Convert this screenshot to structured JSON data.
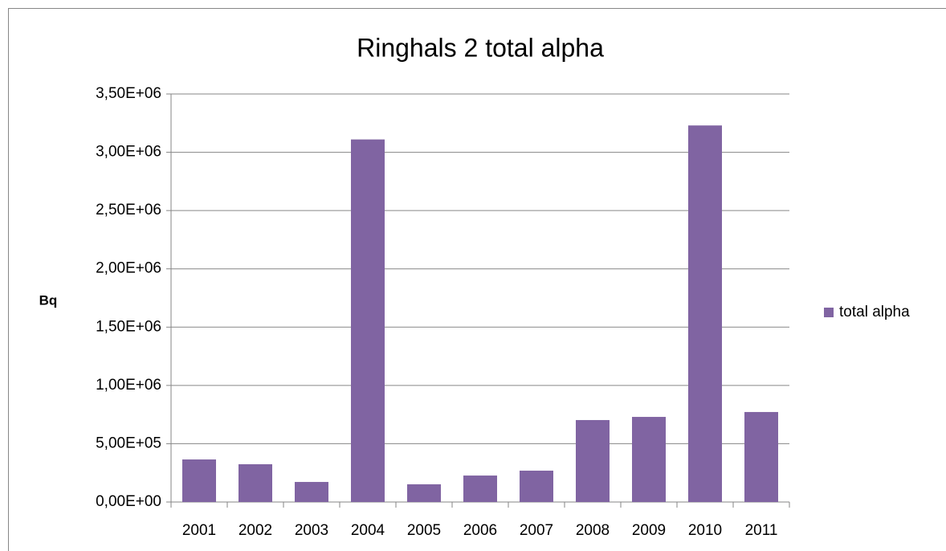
{
  "chart_data": {
    "type": "bar",
    "title": "Ringhals 2 total alpha",
    "y_label": "Bq",
    "categories": [
      "2001",
      "2002",
      "2003",
      "2004",
      "2005",
      "2006",
      "2007",
      "2008",
      "2009",
      "2010",
      "2011"
    ],
    "series": [
      {
        "name": "total alpha",
        "color": "#8064a2",
        "values": [
          365000,
          324000,
          172000,
          3110000,
          152000,
          227000,
          269000,
          703000,
          730000,
          3230000,
          772000
        ]
      }
    ],
    "ylim": [
      0,
      3500000
    ],
    "yticks": [
      {
        "value": 0,
        "label": "0,00E+00"
      },
      {
        "value": 500000,
        "label": "5,00E+05"
      },
      {
        "value": 1000000,
        "label": "1,00E+06"
      },
      {
        "value": 1500000,
        "label": "1,50E+06"
      },
      {
        "value": 2000000,
        "label": "2,00E+06"
      },
      {
        "value": 2500000,
        "label": "2,50E+06"
      },
      {
        "value": 3000000,
        "label": "3,00E+06"
      },
      {
        "value": 3500000,
        "label": "3,50E+06"
      }
    ],
    "grid": true,
    "legend": "right"
  }
}
